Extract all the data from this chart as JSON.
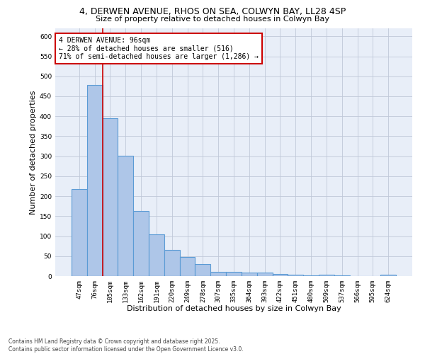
{
  "title_line1": "4, DERWEN AVENUE, RHOS ON SEA, COLWYN BAY, LL28 4SP",
  "title_line2": "Size of property relative to detached houses in Colwyn Bay",
  "xlabel": "Distribution of detached houses by size in Colwyn Bay",
  "ylabel": "Number of detached properties",
  "categories": [
    "47sqm",
    "76sqm",
    "105sqm",
    "133sqm",
    "162sqm",
    "191sqm",
    "220sqm",
    "249sqm",
    "278sqm",
    "307sqm",
    "335sqm",
    "364sqm",
    "393sqm",
    "422sqm",
    "451sqm",
    "480sqm",
    "509sqm",
    "537sqm",
    "566sqm",
    "595sqm",
    "624sqm"
  ],
  "values": [
    218,
    478,
    395,
    302,
    163,
    104,
    65,
    47,
    31,
    10,
    10,
    9,
    9,
    5,
    4,
    2,
    3,
    1,
    0,
    0,
    4
  ],
  "bar_color": "#aec6e8",
  "bar_edge_color": "#5b9bd5",
  "bar_linewidth": 0.8,
  "vline_index": 1.5,
  "vline_color": "#cc0000",
  "vline_linewidth": 1.2,
  "annotation_box_text": "4 DERWEN AVENUE: 96sqm\n← 28% of detached houses are smaller (516)\n71% of semi-detached houses are larger (1,286) →",
  "annotation_box_color": "#cc0000",
  "annotation_box_facecolor": "white",
  "annotation_fontsize": 7,
  "ylim": [
    0,
    620
  ],
  "yticks": [
    0,
    50,
    100,
    150,
    200,
    250,
    300,
    350,
    400,
    450,
    500,
    550,
    600
  ],
  "grid_color": "#c0c8d8",
  "bg_color": "#e8eef8",
  "footer": "Contains HM Land Registry data © Crown copyright and database right 2025.\nContains public sector information licensed under the Open Government Licence v3.0.",
  "title_fontsize": 9,
  "subtitle_fontsize": 8,
  "xlabel_fontsize": 8,
  "ylabel_fontsize": 8,
  "tick_fontsize": 6.5,
  "footer_fontsize": 5.5
}
